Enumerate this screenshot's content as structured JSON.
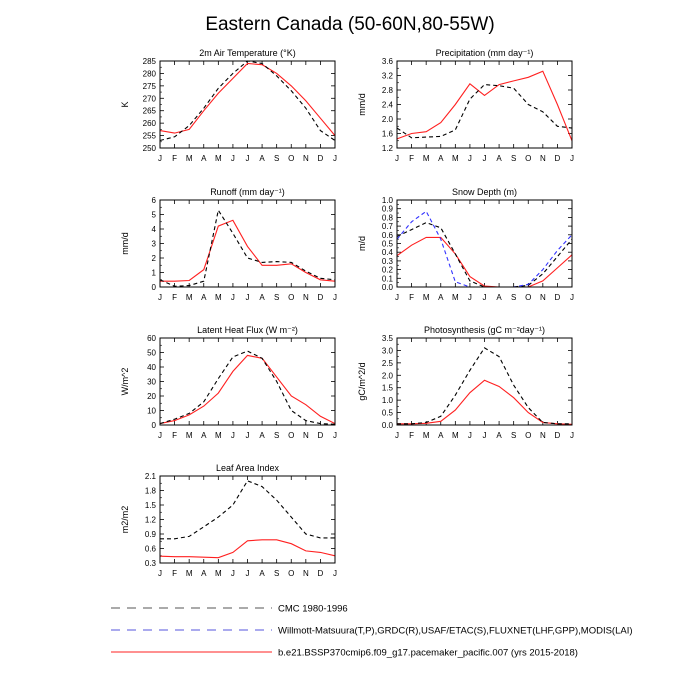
{
  "title": "Eastern Canada (50-60N,80-55W)",
  "months": [
    "J",
    "F",
    "M",
    "A",
    "M",
    "J",
    "J",
    "A",
    "S",
    "O",
    "N",
    "D",
    "J"
  ],
  "legend": [
    {
      "label": "CMC 1980-1996",
      "color": "#555555",
      "dash": "dashed"
    },
    {
      "label": "Willmott-Matsuura(T,P),GRDC(R),USAF/ETAC(S),FLUXNET(LHF,GPP),MODIS(LAI)",
      "color": "#5555dd",
      "dash": "dashed"
    },
    {
      "label": "b.e21.BSSP370cmip6.f09_g17.pacemaker_pacific.007 (yrs 2015-2018)",
      "color": "#ff2020",
      "dash": "solid"
    }
  ],
  "chart_data": [
    {
      "type": "line",
      "title": "2m Air Temperature (°K)",
      "ylabel": "K",
      "ylim": [
        250,
        285
      ],
      "yticks": [
        250,
        255,
        260,
        265,
        270,
        275,
        280,
        285
      ],
      "series": [
        {
          "name": "b.e21.BSSP370cmip6.f09_g17.pacemaker_pacific.007 (yrs 2015-2018)",
          "color": "#ff2020",
          "dash": "solid",
          "values": [
            257,
            256,
            257.5,
            265,
            272,
            278,
            284,
            283.5,
            280,
            275,
            269,
            262,
            255
          ]
        },
        {
          "name": "CMC 1980-1996",
          "color": "#000000",
          "dash": "dashed",
          "values": [
            253,
            254.5,
            259,
            266,
            274,
            280,
            285,
            284,
            279,
            273,
            266,
            257,
            253
          ]
        }
      ]
    },
    {
      "type": "line",
      "title": "Precipitation (mm day⁻¹)",
      "ylabel": "mm/d",
      "ylim": [
        1.2,
        3.6
      ],
      "yticks": [
        1.2,
        1.6,
        2.0,
        2.4,
        2.8,
        3.2,
        3.6
      ],
      "series": [
        {
          "name": "b.e21.BSSP370cmip6.f09_g17.pacemaker_pacific.007 (yrs 2015-2018)",
          "color": "#ff2020",
          "dash": "solid",
          "values": [
            1.45,
            1.6,
            1.65,
            1.9,
            2.4,
            2.97,
            2.65,
            2.95,
            3.05,
            3.15,
            3.32,
            2.4,
            1.4
          ]
        },
        {
          "name": "CMC 1980-1996",
          "color": "#000000",
          "dash": "dashed",
          "values": [
            1.75,
            1.48,
            1.5,
            1.52,
            1.7,
            2.55,
            2.95,
            2.92,
            2.85,
            2.4,
            2.2,
            1.8,
            1.75
          ]
        }
      ]
    },
    {
      "type": "line",
      "title": "Runoff (mm day⁻¹)",
      "ylabel": "mm/d",
      "ylim": [
        0.0,
        6.0
      ],
      "yticks": [
        0.0,
        1.0,
        2.0,
        3.0,
        4.0,
        5.0,
        6.0
      ],
      "series": [
        {
          "name": "b.e21.BSSP370cmip6.f09_g17.pacemaker_pacific.007 (yrs 2015-2018)",
          "color": "#ff2020",
          "dash": "solid",
          "values": [
            0.4,
            0.4,
            0.45,
            1.2,
            4.2,
            4.6,
            2.8,
            1.5,
            1.5,
            1.6,
            1.0,
            0.5,
            0.4
          ]
        },
        {
          "name": "CMC 1980-1996",
          "color": "#000000",
          "dash": "dashed",
          "values": [
            0.5,
            0.05,
            0.1,
            0.4,
            5.3,
            3.7,
            2.0,
            1.7,
            1.75,
            1.7,
            1.1,
            0.6,
            0.5
          ]
        }
      ]
    },
    {
      "type": "line",
      "title": "Snow Depth (m)",
      "ylabel": "m/d",
      "ylim": [
        0.0,
        1.0
      ],
      "yticks": [
        0.0,
        0.1,
        0.2,
        0.3,
        0.4,
        0.5,
        0.6,
        0.7,
        0.8,
        0.9,
        1.0
      ],
      "series": [
        {
          "name": "b.e21.BSSP370cmip6.f09_g17.pacemaker_pacific.007 (yrs 2015-2018)",
          "color": "#ff2020",
          "dash": "solid",
          "values": [
            0.36,
            0.48,
            0.57,
            0.57,
            0.38,
            0.12,
            0.01,
            0.0,
            0.0,
            0.0,
            0.07,
            0.22,
            0.37
          ]
        },
        {
          "name": "CMC 1980-1996",
          "color": "#000000",
          "dash": "dashed",
          "values": [
            0.58,
            0.66,
            0.74,
            0.68,
            0.38,
            0.07,
            0.0,
            0.0,
            0.0,
            0.02,
            0.15,
            0.35,
            0.55
          ]
        },
        {
          "name": "Willmott-Matsuura(T,P),GRDC(R),USAF/ETAC(S),FLUXNET(LHF,GPP),MODIS(LAI)",
          "color": "#3333ff",
          "dash": "dashed",
          "values": [
            0.55,
            0.75,
            0.87,
            0.55,
            0.06,
            0.0,
            0.0,
            0.0,
            0.0,
            0.03,
            0.2,
            0.42,
            0.6
          ]
        }
      ]
    },
    {
      "type": "line",
      "title": "Latent Heat Flux (W m⁻²)",
      "ylabel": "W/m^2",
      "ylim": [
        0,
        60
      ],
      "yticks": [
        0,
        10,
        20,
        30,
        40,
        50,
        60
      ],
      "series": [
        {
          "name": "b.e21.BSSP370cmip6.f09_g17.pacemaker_pacific.007 (yrs 2015-2018)",
          "color": "#ff2020",
          "dash": "solid",
          "values": [
            1,
            3,
            7,
            13,
            22,
            37,
            48,
            46,
            33,
            20,
            14,
            6,
            1
          ]
        },
        {
          "name": "CMC 1980-1996",
          "color": "#000000",
          "dash": "dashed",
          "values": [
            1,
            4,
            8,
            16,
            32,
            47,
            51,
            46,
            30,
            10,
            3,
            1,
            0.5
          ]
        }
      ]
    },
    {
      "type": "line",
      "title": "Photosynthesis (gC m⁻²day⁻¹)",
      "ylabel": "gC/m^2/d",
      "ylim": [
        0.0,
        3.5
      ],
      "yticks": [
        0.0,
        0.5,
        1.0,
        1.5,
        2.0,
        2.5,
        3.0,
        3.5
      ],
      "series": [
        {
          "name": "b.e21.BSSP370cmip6.f09_g17.pacemaker_pacific.007 (yrs 2015-2018)",
          "color": "#ff2020",
          "dash": "solid",
          "values": [
            0.05,
            0.05,
            0.07,
            0.15,
            0.6,
            1.3,
            1.8,
            1.55,
            1.1,
            0.5,
            0.1,
            0.05,
            0.03
          ]
        },
        {
          "name": "CMC 1980-1996",
          "color": "#000000",
          "dash": "dashed",
          "values": [
            0.05,
            0.05,
            0.1,
            0.35,
            1.2,
            2.2,
            3.1,
            2.75,
            1.6,
            0.7,
            0.1,
            0.05,
            0.05
          ]
        }
      ]
    },
    {
      "type": "line",
      "title": "Leaf Area Index",
      "ylabel": "m2/m2",
      "ylim": [
        0.3,
        2.1
      ],
      "yticks": [
        0.3,
        0.6,
        0.9,
        1.2,
        1.5,
        1.8,
        2.1
      ],
      "series": [
        {
          "name": "b.e21.BSSP370cmip6.f09_g17.pacemaker_pacific.007 (yrs 2015-2018)",
          "color": "#ff2020",
          "dash": "solid",
          "values": [
            0.44,
            0.43,
            0.43,
            0.42,
            0.41,
            0.52,
            0.76,
            0.78,
            0.78,
            0.7,
            0.55,
            0.52,
            0.45
          ]
        },
        {
          "name": "CMC 1980-1996",
          "color": "#000000",
          "dash": "dashed",
          "values": [
            0.8,
            0.8,
            0.85,
            1.05,
            1.25,
            1.5,
            2.0,
            1.88,
            1.6,
            1.25,
            0.9,
            0.82,
            0.82
          ]
        }
      ]
    }
  ]
}
